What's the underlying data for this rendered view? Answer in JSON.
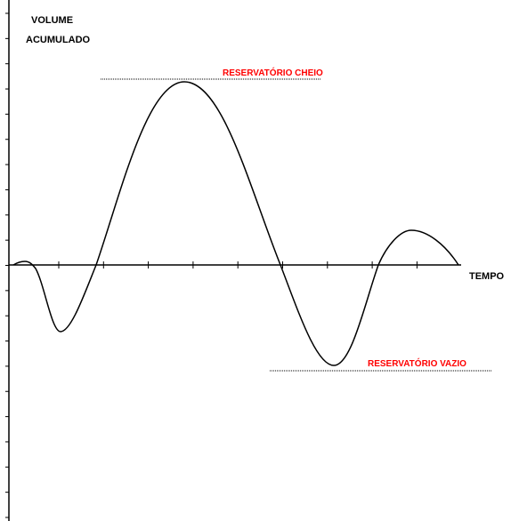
{
  "y_axis_label_line1": "VOLUME",
  "y_axis_label_line2": "ACUMULADO",
  "x_axis_label": "TEMPO",
  "annotations": [
    "RESERVATÓRIO CHEIO",
    "RESERVATÓRIO VAZIO"
  ]
}
